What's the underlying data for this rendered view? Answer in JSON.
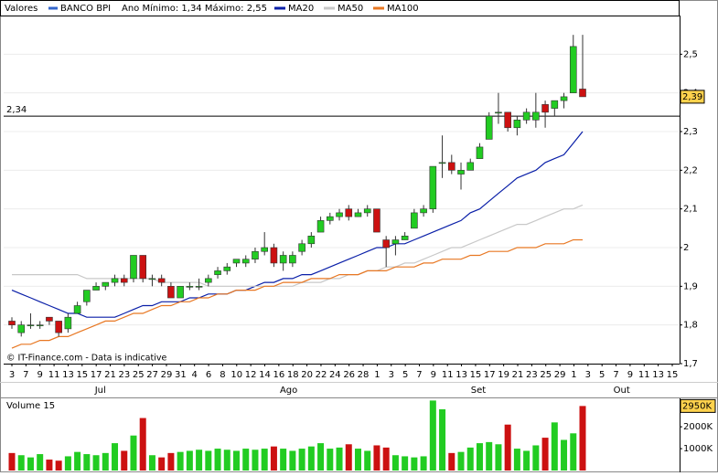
{
  "chart_data": {
    "type": "candlestick",
    "title": "Valores",
    "series_name": "BANCO BPI",
    "series_color": "#3366cc",
    "annotation": "Ano Mínimo: 1,34 Máximo: 2,55",
    "credit": "© IT-Finance.com - Data is indicative",
    "x_labels": [
      "3",
      "7",
      "9",
      "11",
      "13",
      "15",
      "17",
      "21",
      "23",
      "25",
      "27",
      "29",
      "31",
      "4",
      "6",
      "8",
      "10",
      "12",
      "14",
      "16",
      "18",
      "20",
      "22",
      "24",
      "26",
      "28",
      "1",
      "3",
      "5",
      "7",
      "9",
      "11",
      "13",
      "15",
      "17",
      "19",
      "21",
      "23",
      "25",
      "29",
      "1",
      "3",
      "5",
      "7",
      "9",
      "11",
      "13",
      "15"
    ],
    "months": [
      "Jul",
      "Ago",
      "Set",
      "Out"
    ],
    "open": [
      1.81,
      1.78,
      1.8,
      1.8,
      1.82,
      1.81,
      1.79,
      1.83,
      1.86,
      1.89,
      1.9,
      1.91,
      1.92,
      1.92,
      1.98,
      1.92,
      1.92,
      1.9,
      1.87,
      1.9,
      1.9,
      1.91,
      1.93,
      1.94,
      1.96,
      1.96,
      1.97,
      1.99,
      2.0,
      1.96,
      1.96,
      1.99,
      2.01,
      2.04,
      2.07,
      2.08,
      2.1,
      2.08,
      2.09,
      2.1,
      2.02,
      2.01,
      2.02,
      2.05,
      2.09,
      2.1,
      2.22,
      2.22,
      2.19,
      2.2,
      2.23,
      2.28,
      2.35,
      2.35,
      2.31,
      2.33,
      2.33,
      2.37,
      2.36,
      2.38,
      2.4,
      2.41
    ],
    "high": [
      1.82,
      1.81,
      1.83,
      1.81,
      1.82,
      1.81,
      1.83,
      1.86,
      1.89,
      1.91,
      1.91,
      1.93,
      1.93,
      1.98,
      1.98,
      1.93,
      1.93,
      1.91,
      1.9,
      1.91,
      1.92,
      1.93,
      1.95,
      1.96,
      1.97,
      1.98,
      2.0,
      2.04,
      2.01,
      1.99,
      1.99,
      2.02,
      2.04,
      2.08,
      2.09,
      2.1,
      2.11,
      2.1,
      2.11,
      2.1,
      2.03,
      2.03,
      2.04,
      2.1,
      2.11,
      2.21,
      2.29,
      2.24,
      2.22,
      2.23,
      2.27,
      2.35,
      2.4,
      2.35,
      2.34,
      2.36,
      2.4,
      2.38,
      2.38,
      2.4,
      2.55,
      2.55
    ],
    "low": [
      1.79,
      1.77,
      1.79,
      1.79,
      1.8,
      1.77,
      1.78,
      1.83,
      1.85,
      1.89,
      1.89,
      1.9,
      1.9,
      1.91,
      1.91,
      1.9,
      1.9,
      1.87,
      1.87,
      1.89,
      1.89,
      1.9,
      1.92,
      1.93,
      1.95,
      1.95,
      1.96,
      1.98,
      1.95,
      1.94,
      1.95,
      1.98,
      2.0,
      2.04,
      2.06,
      2.07,
      2.07,
      2.08,
      2.08,
      2.04,
      1.95,
      1.98,
      2.02,
      2.05,
      2.08,
      2.09,
      2.18,
      2.19,
      2.15,
      2.2,
      2.23,
      2.28,
      2.32,
      2.3,
      2.29,
      2.32,
      2.31,
      2.31,
      2.34,
      2.36,
      2.4,
      2.39
    ],
    "close": [
      1.8,
      1.8,
      1.8,
      1.8,
      1.81,
      1.78,
      1.82,
      1.85,
      1.89,
      1.9,
      1.91,
      1.92,
      1.91,
      1.98,
      1.92,
      1.92,
      1.91,
      1.87,
      1.9,
      1.9,
      1.9,
      1.92,
      1.94,
      1.95,
      1.97,
      1.97,
      1.99,
      2.0,
      1.96,
      1.98,
      1.98,
      2.01,
      2.03,
      2.07,
      2.08,
      2.09,
      2.08,
      2.09,
      2.1,
      2.04,
      2.0,
      2.02,
      2.03,
      2.09,
      2.1,
      2.21,
      2.22,
      2.2,
      2.2,
      2.22,
      2.26,
      2.34,
      2.35,
      2.31,
      2.33,
      2.35,
      2.35,
      2.35,
      2.38,
      2.39,
      2.52,
      2.39
    ],
    "up_color": "#22cc22",
    "down_color": "#cc1111",
    "moving_averages": [
      {
        "name": "MA20",
        "color": "#0a1fa8",
        "values": [
          1.89,
          1.88,
          1.87,
          1.86,
          1.85,
          1.84,
          1.83,
          1.83,
          1.82,
          1.82,
          1.82,
          1.82,
          1.83,
          1.84,
          1.85,
          1.85,
          1.86,
          1.86,
          1.86,
          1.87,
          1.87,
          1.88,
          1.88,
          1.88,
          1.89,
          1.89,
          1.9,
          1.91,
          1.91,
          1.92,
          1.92,
          1.93,
          1.93,
          1.94,
          1.95,
          1.96,
          1.97,
          1.98,
          1.99,
          2.0,
          2.0,
          2.01,
          2.01,
          2.02,
          2.03,
          2.04,
          2.05,
          2.06,
          2.07,
          2.09,
          2.1,
          2.12,
          2.14,
          2.16,
          2.18,
          2.19,
          2.2,
          2.22,
          2.23,
          2.24,
          2.27,
          2.3
        ]
      },
      {
        "name": "MA50",
        "color": "#c8c8c8",
        "values": [
          1.93,
          1.93,
          1.93,
          1.93,
          1.93,
          1.93,
          1.93,
          1.93,
          1.92,
          1.92,
          1.92,
          1.92,
          1.92,
          1.92,
          1.92,
          1.92,
          1.91,
          1.91,
          1.91,
          1.91,
          1.91,
          1.9,
          1.9,
          1.9,
          1.9,
          1.9,
          1.9,
          1.9,
          1.9,
          1.9,
          1.9,
          1.91,
          1.91,
          1.91,
          1.92,
          1.92,
          1.93,
          1.93,
          1.94,
          1.94,
          1.95,
          1.95,
          1.96,
          1.96,
          1.97,
          1.98,
          1.99,
          2.0,
          2.0,
          2.01,
          2.02,
          2.03,
          2.04,
          2.05,
          2.06,
          2.06,
          2.07,
          2.08,
          2.09,
          2.1,
          2.1,
          2.11
        ]
      },
      {
        "name": "MA100",
        "color": "#e87722",
        "values": [
          1.74,
          1.75,
          1.75,
          1.76,
          1.76,
          1.77,
          1.77,
          1.78,
          1.79,
          1.8,
          1.81,
          1.81,
          1.82,
          1.83,
          1.83,
          1.84,
          1.85,
          1.85,
          1.86,
          1.86,
          1.87,
          1.87,
          1.88,
          1.88,
          1.89,
          1.89,
          1.89,
          1.9,
          1.9,
          1.91,
          1.91,
          1.91,
          1.92,
          1.92,
          1.92,
          1.93,
          1.93,
          1.93,
          1.94,
          1.94,
          1.94,
          1.95,
          1.95,
          1.95,
          1.96,
          1.96,
          1.97,
          1.97,
          1.97,
          1.98,
          1.98,
          1.99,
          1.99,
          1.99,
          2.0,
          2.0,
          2.0,
          2.01,
          2.01,
          2.01,
          2.02,
          2.02
        ]
      }
    ],
    "ylim": [
      1.7,
      2.6
    ],
    "yticks": [
      {
        "value": 1.7,
        "label": "1,7"
      },
      {
        "value": 1.8,
        "label": "1,8"
      },
      {
        "value": 1.9,
        "label": "1,9"
      },
      2,
      {
        "value": 2.1,
        "label": "2,1"
      },
      {
        "value": 2.2,
        "label": "2,2"
      },
      {
        "value": 2.3,
        "label": "2,3"
      },
      {
        "value": 2.4,
        "label": "2,4"
      },
      {
        "value": 2.5,
        "label": "2,5"
      }
    ],
    "reference_line": {
      "value": 2.34,
      "label": "2,34"
    },
    "last_price": {
      "value": 2.39,
      "label": "2,39"
    },
    "grid": true,
    "volume": {
      "title": "Volume 15",
      "values": [
        800,
        700,
        600,
        750,
        500,
        450,
        650,
        850,
        750,
        700,
        800,
        1250,
        900,
        1600,
        2400,
        700,
        600,
        800,
        850,
        900,
        950,
        900,
        1000,
        950,
        900,
        1000,
        950,
        1000,
        1100,
        1000,
        900,
        1000,
        1100,
        1250,
        1000,
        1050,
        1200,
        1000,
        900,
        1150,
        1050,
        700,
        650,
        600,
        650,
        3200,
        2800,
        800,
        850,
        1050,
        1250,
        1300,
        1200,
        2100,
        1000,
        900,
        1150,
        1500,
        2200,
        1400,
        1700,
        2950
      ],
      "ylim": [
        0,
        3300
      ],
      "yticks": [
        {
          "value": 1000,
          "label": "1000K"
        },
        {
          "value": 2000,
          "label": "2000K"
        }
      ],
      "last": {
        "value": 2950,
        "label": "2950K"
      }
    }
  }
}
